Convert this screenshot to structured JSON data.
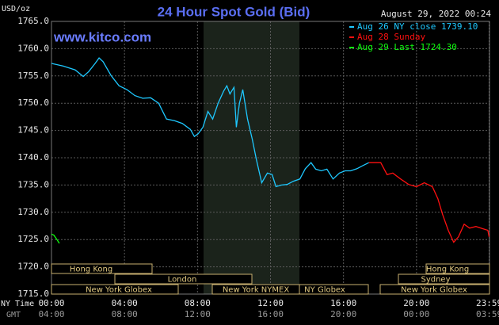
{
  "chart_data": {
    "type": "line",
    "title": "24 Hour Spot Gold (Bid)",
    "timestamp": "August 29, 2022 00:24",
    "y_unit": "USD/oz",
    "watermark": "www.kitco.com",
    "x_row_labels": [
      "NY Time",
      "GMT"
    ],
    "ylim": [
      1715,
      1765
    ],
    "yticks": [
      {
        "value": 1715,
        "label": "1715.0"
      },
      {
        "value": 1720,
        "label": "1720.0"
      },
      {
        "value": 1725,
        "label": "1725.0"
      },
      {
        "value": 1730,
        "label": "1730.0"
      },
      {
        "value": 1735,
        "label": "1735.0"
      },
      {
        "value": 1740,
        "label": "1740.0"
      },
      {
        "value": 1745,
        "label": "1745.0"
      },
      {
        "value": 1750,
        "label": "1750.0"
      },
      {
        "value": 1755,
        "label": "1755.0"
      },
      {
        "value": 1760,
        "label": "1760.0"
      },
      {
        "value": 1765,
        "label": "1765.0"
      }
    ],
    "xlim": [
      0,
      24
    ],
    "xticks": [
      {
        "value": 0,
        "label": "00:00"
      },
      {
        "value": 4,
        "label": "04:00"
      },
      {
        "value": 8,
        "label": "08:00"
      },
      {
        "value": 12,
        "label": "12:00"
      },
      {
        "value": 16,
        "label": "16:00"
      },
      {
        "value": 20,
        "label": "20:00"
      },
      {
        "value": 23.98,
        "label": "23:59"
      }
    ],
    "gmt_labels": [
      "04:00",
      "08:00",
      "12:00",
      "16:00",
      "20:00",
      "00:00",
      "03:59"
    ],
    "grid": true,
    "sessions": [
      "Hong Kong",
      "London",
      "New York Globex",
      "New York NYMEX",
      "NY Globex",
      "Hong Kong",
      "Sydney",
      "New York Globex"
    ],
    "series": [
      {
        "name": "Aug 26 NY close 1739.10",
        "color": "#1ec8ff",
        "x": [
          0,
          0.65,
          1.3,
          1.74,
          2.04,
          2.39,
          2.61,
          2.83,
          3.26,
          3.7,
          4.13,
          4.57,
          5,
          5.43,
          5.87,
          6.3,
          6.74,
          7.17,
          7.61,
          7.83,
          8.04,
          8.3,
          8.57,
          8.83,
          9.13,
          9.43,
          9.61,
          9.78,
          10,
          10.13,
          10.3,
          10.48,
          10.74,
          11,
          11.22,
          11.52,
          11.83,
          12.09,
          12.3,
          12.61,
          12.91,
          13.26,
          13.61,
          13.91,
          14.22,
          14.48,
          14.78,
          15.09,
          15.43,
          15.78,
          16.09,
          16.39,
          16.74,
          17.09,
          17.39
        ],
        "values": [
          1757.3,
          1756.8,
          1756.1,
          1754.9,
          1755.8,
          1757.3,
          1758.3,
          1757.6,
          1755.1,
          1753.2,
          1752.5,
          1751.4,
          1750.9,
          1751.0,
          1750.0,
          1747.1,
          1746.8,
          1746.3,
          1745.2,
          1743.9,
          1744.4,
          1745.6,
          1748.5,
          1747.1,
          1750.0,
          1752.2,
          1753.2,
          1751.7,
          1752.9,
          1745.6,
          1750.0,
          1752.5,
          1747.1,
          1743.4,
          1739.8,
          1735.4,
          1737.2,
          1736.9,
          1734.7,
          1735.0,
          1735.1,
          1735.7,
          1736.1,
          1738.0,
          1739.1,
          1737.9,
          1737.6,
          1737.9,
          1736.1,
          1737.2,
          1737.6,
          1737.6,
          1738.0,
          1738.6,
          1739.1
        ]
      },
      {
        "name": "Aug 28 Sunday",
        "color": "#ff1010",
        "x": [
          17.39,
          18.04,
          18.39,
          18.7,
          19.13,
          19.57,
          20,
          20.43,
          20.87,
          21.17,
          21.43,
          21.74,
          22.04,
          22.3,
          22.61,
          22.91,
          23.26,
          23.61,
          23.91,
          23.98
        ],
        "values": [
          1739.1,
          1739.1,
          1736.9,
          1737.2,
          1736.1,
          1735.1,
          1734.7,
          1735.4,
          1734.7,
          1732.5,
          1729.6,
          1726.7,
          1724.5,
          1725.5,
          1727.8,
          1727.1,
          1727.4,
          1727.0,
          1726.7,
          1725.5
        ]
      },
      {
        "name": "Aug 29 Last 1724.30",
        "color": "#10ff10",
        "x": [
          0,
          0.13,
          0.3,
          0.43
        ],
        "values": [
          1726.0,
          1725.8,
          1725.0,
          1724.3
        ]
      }
    ]
  }
}
